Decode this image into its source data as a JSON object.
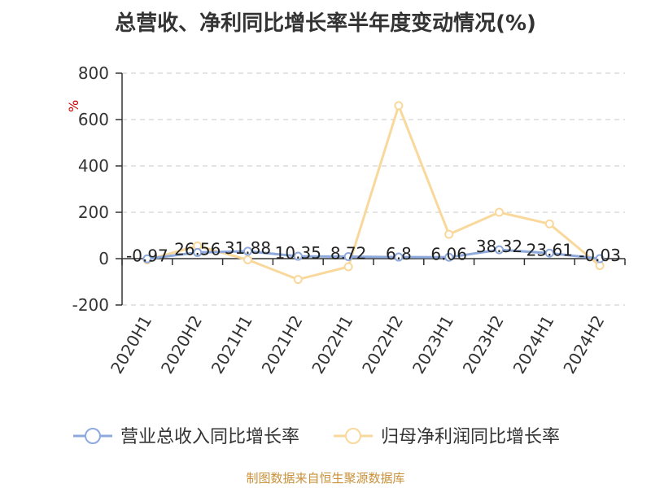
{
  "title": "总营收、净利同比增长率半年度变动情况(%)",
  "source": "制图数据来自恒生聚源数据库",
  "chart_data": {
    "type": "line",
    "categories": [
      "2020H1",
      "2020H2",
      "2021H1",
      "2021H2",
      "2022H1",
      "2022H2",
      "2023H1",
      "2023H2",
      "2024H1",
      "2024H2"
    ],
    "ylabel": "%",
    "ylim": [
      -200,
      800
    ],
    "yticks": [
      "800",
      "600",
      "400",
      "200",
      "0",
      "-200"
    ],
    "grid": true,
    "legend_position": "bottom",
    "series": [
      {
        "name": "营业总收入同比增长率",
        "color": "#8ea9db",
        "values": [
          -0.97,
          26.56,
          31.88,
          10.35,
          8.72,
          6.8,
          6.06,
          38.32,
          23.61,
          -0.03
        ],
        "labels": [
          "-0.97",
          "26.56",
          "31.88",
          "10.35",
          "8.72",
          "6.8",
          "6.06",
          "38.32",
          "23.61",
          "-0.03"
        ]
      },
      {
        "name": "归母净利润同比增长率",
        "color": "#f9d89c",
        "values": [
          -5,
          55,
          -5,
          -90,
          -35,
          660,
          105,
          200,
          150,
          -30
        ]
      }
    ]
  }
}
